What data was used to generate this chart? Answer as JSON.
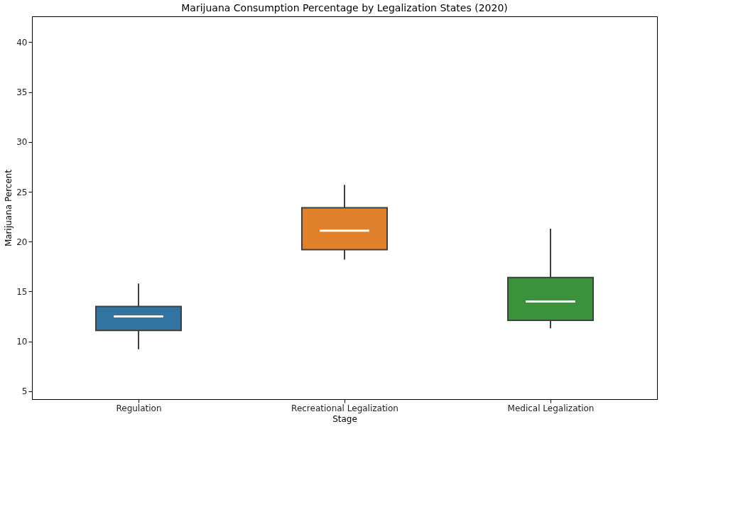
{
  "chart_data": {
    "type": "box",
    "title": "Marijuana Consumption Percentage by Legalization States (2020)",
    "xlabel": "Stage",
    "ylabel": "Marijuana Percent",
    "categories": [
      "Regulation",
      "Recreational Legalization",
      "Medical Legalization"
    ],
    "colors": [
      "#3274a1",
      "#e1812c",
      "#3a923a"
    ],
    "boxes": [
      {
        "low": 9.2,
        "q1": 11.1,
        "median": 12.5,
        "q3": 13.5,
        "high": 15.8
      },
      {
        "low": 18.2,
        "q1": 19.2,
        "median": 21.1,
        "q3": 23.4,
        "high": 25.7
      },
      {
        "low": 11.3,
        "q1": 12.1,
        "median": 14.0,
        "q3": 16.4,
        "high": 21.3
      }
    ],
    "ylim": [
      4.2,
      42.6
    ],
    "yticks": [
      5,
      10,
      15,
      20,
      25,
      30,
      35,
      40
    ],
    "grid": false
  }
}
